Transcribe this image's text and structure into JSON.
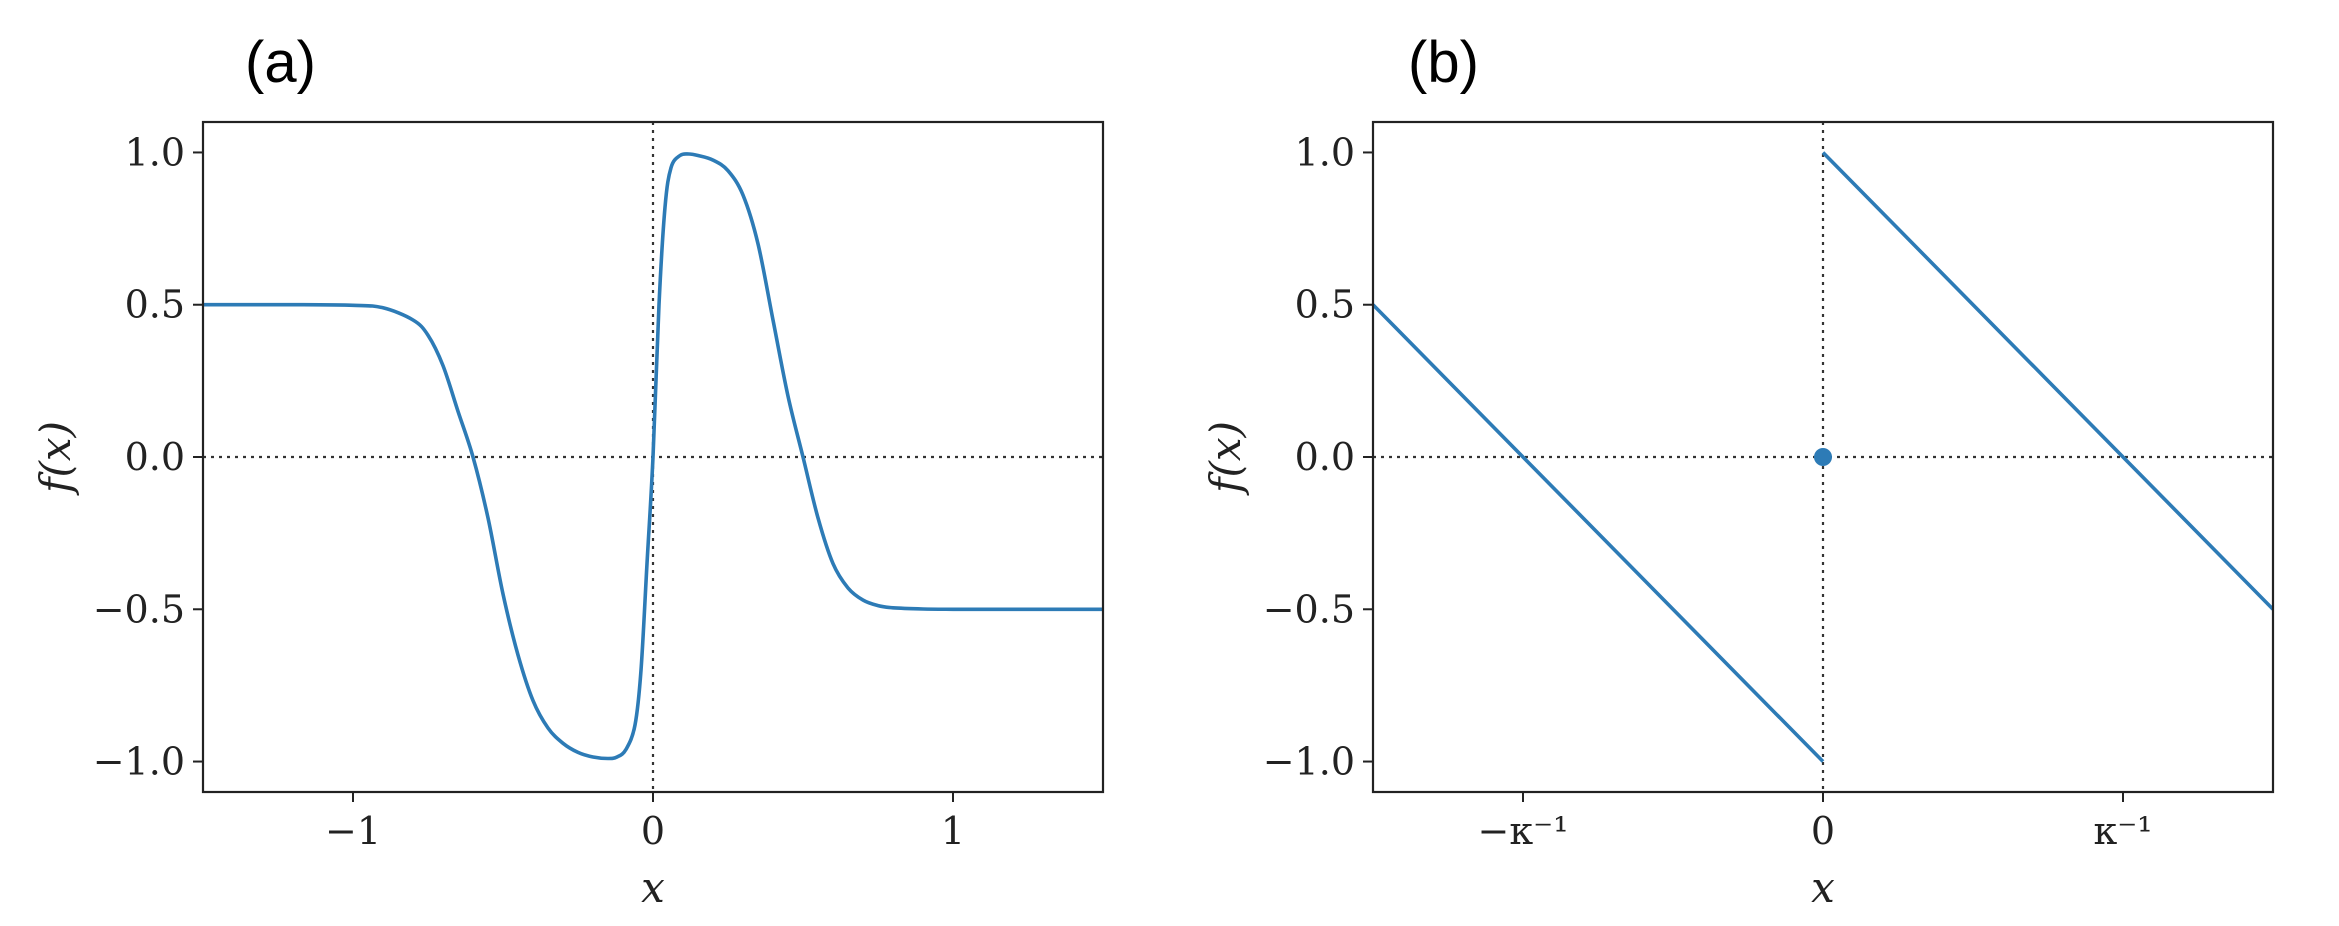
{
  "chart_data": [
    {
      "type": "line",
      "panel_label": "(a)",
      "xlabel": "x",
      "ylabel": "f(x)",
      "xlim": [
        -1.5,
        1.5
      ],
      "ylim": [
        -1.1,
        1.1
      ],
      "xticks": [
        {
          "value": -1,
          "label": "−1"
        },
        {
          "value": 0,
          "label": "0"
        },
        {
          "value": 1,
          "label": "1"
        }
      ],
      "yticks": [
        {
          "value": -1.0,
          "label": "−1.0"
        },
        {
          "value": -0.5,
          "label": "−0.5"
        },
        {
          "value": 0.0,
          "label": "0.0"
        },
        {
          "value": 0.5,
          "label": "0.5"
        },
        {
          "value": 1.0,
          "label": "1.0"
        }
      ],
      "reference_lines": {
        "x": 0,
        "y": 0
      },
      "series": [
        {
          "x": [
            -1.5,
            -1.2,
            -1.0,
            -0.9,
            -0.8,
            -0.75,
            -0.7,
            -0.65,
            -0.6,
            -0.55,
            -0.5,
            -0.45,
            -0.4,
            -0.35,
            -0.3,
            -0.25,
            -0.2,
            -0.15,
            -0.12,
            -0.09,
            -0.06,
            -0.04,
            -0.02,
            0.0,
            0.02,
            0.04,
            0.06,
            0.09,
            0.12,
            0.15,
            0.2,
            0.25,
            0.3,
            0.35,
            0.4,
            0.45,
            0.5,
            0.55,
            0.6,
            0.65,
            0.7,
            0.75,
            0.8,
            0.9,
            1.0,
            1.2,
            1.5
          ],
          "y": [
            0.5,
            0.5,
            0.498,
            0.49,
            0.45,
            0.4,
            0.3,
            0.15,
            0.0,
            -0.2,
            -0.45,
            -0.65,
            -0.8,
            -0.89,
            -0.94,
            -0.97,
            -0.985,
            -0.99,
            -0.985,
            -0.96,
            -0.88,
            -0.7,
            -0.35,
            0.0,
            0.5,
            0.82,
            0.95,
            0.99,
            0.995,
            0.99,
            0.975,
            0.94,
            0.86,
            0.7,
            0.45,
            0.2,
            0.0,
            -0.2,
            -0.35,
            -0.43,
            -0.47,
            -0.488,
            -0.495,
            -0.499,
            -0.5,
            -0.5,
            -0.5
          ]
        }
      ]
    },
    {
      "type": "line",
      "panel_label": "(b)",
      "xlabel": "x",
      "ylabel": "f(x)",
      "xlim": [
        -1.5,
        1.5
      ],
      "ylim": [
        -1.1,
        1.1
      ],
      "xticks": [
        {
          "value": -1,
          "label": "−κ⁻¹"
        },
        {
          "value": 0,
          "label": "0"
        },
        {
          "value": 1,
          "label": "κ⁻¹"
        }
      ],
      "yticks": [
        {
          "value": -1.0,
          "label": "−1.0"
        },
        {
          "value": -0.5,
          "label": "−0.5"
        },
        {
          "value": 0.0,
          "label": "0.0"
        },
        {
          "value": 0.5,
          "label": "0.5"
        },
        {
          "value": 1.0,
          "label": "1.0"
        }
      ],
      "reference_lines": {
        "x": 0,
        "y": 0
      },
      "series": [
        {
          "x": [
            -1.5,
            0
          ],
          "y": [
            0.5,
            -1.0
          ]
        },
        {
          "x": [
            0,
            1.5
          ],
          "y": [
            1.0,
            -0.5
          ]
        }
      ],
      "points": [
        {
          "x": 0,
          "y": 0
        }
      ]
    }
  ]
}
